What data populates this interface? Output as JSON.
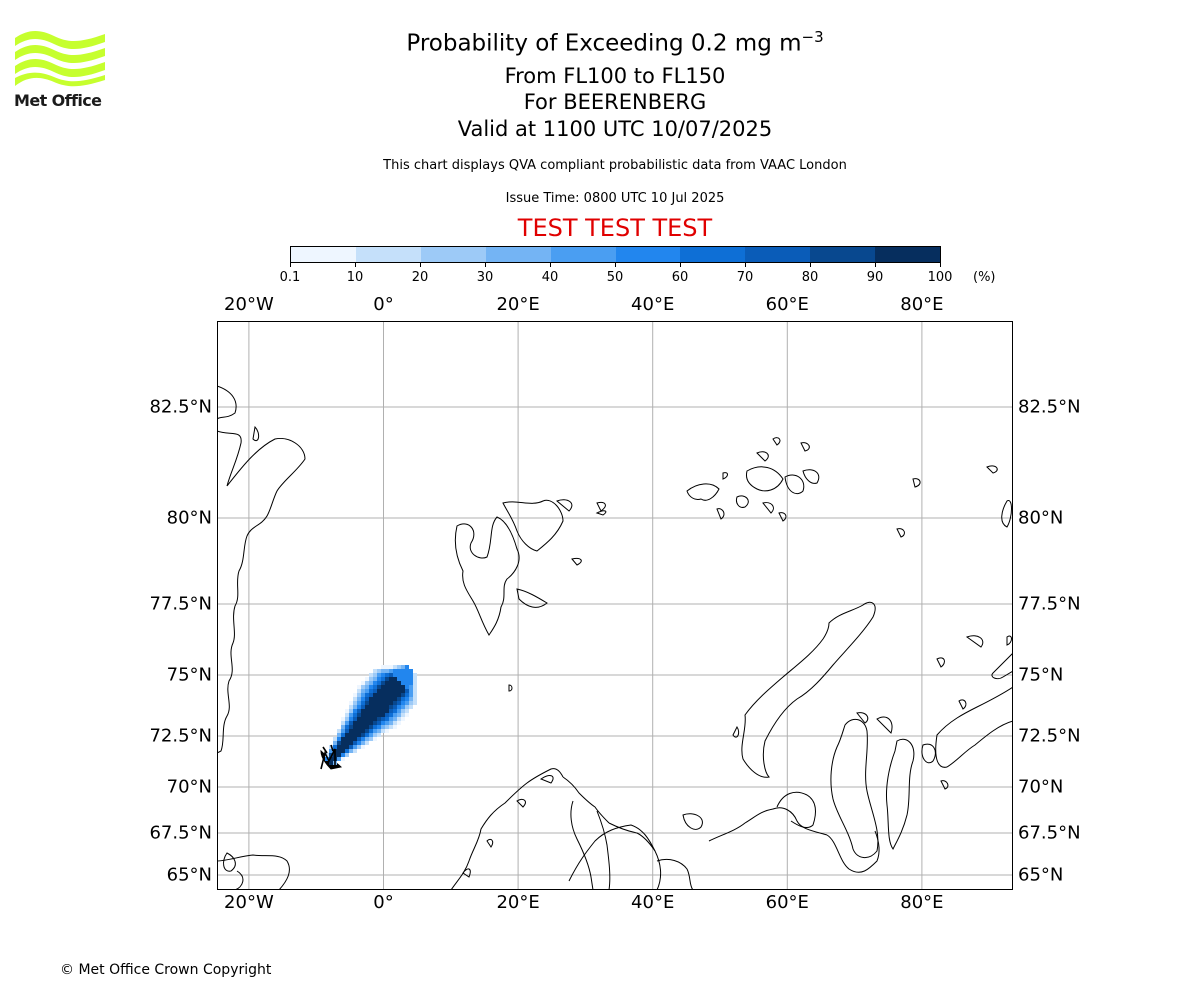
{
  "header": {
    "title_main": "Probability of Exceeding 0.2 mg m",
    "title_exponent": "−3",
    "subtitle_levels": "From FL100 to FL150",
    "subtitle_volcano": "For BEERENBERG",
    "subtitle_valid": "Valid at 1100 UTC 10/07/2025",
    "description": "This chart displays QVA compliant probabilistic data from VAAC London",
    "issue_time": "Issue Time: 0800 UTC 10 Jul 2025",
    "test_banner": "TEST TEST TEST"
  },
  "logo": {
    "name": "Met Office",
    "accent_color": "#c6ff2e"
  },
  "colorbar": {
    "ticks": [
      "0.1",
      "10",
      "20",
      "30",
      "40",
      "50",
      "60",
      "70",
      "80",
      "90",
      "100"
    ],
    "unit": "(%)",
    "colors": [
      "#eef6ff",
      "#c5e0fa",
      "#9dcaf7",
      "#74b4f4",
      "#4a9ef2",
      "#2286ee",
      "#0e6fd6",
      "#0a5cb8",
      "#08488f",
      "#062e5e"
    ]
  },
  "map": {
    "lon_labels": [
      "20°W",
      "0°",
      "20°E",
      "40°E",
      "60°E",
      "80°E"
    ],
    "lon_values": [
      -20,
      0,
      20,
      40,
      60,
      80
    ],
    "lat_labels": [
      "82.5°N",
      "80°N",
      "77.5°N",
      "75°N",
      "72.5°N",
      "70°N",
      "67.5°N",
      "65°N"
    ],
    "lat_values": [
      82.5,
      80,
      77.5,
      75,
      72.5,
      70,
      67.5,
      65
    ],
    "plume_max_probability_pct": 100,
    "volcano_marker": "volcano-icon"
  },
  "footer": {
    "copyright": "© Met Office Crown Copyright"
  }
}
